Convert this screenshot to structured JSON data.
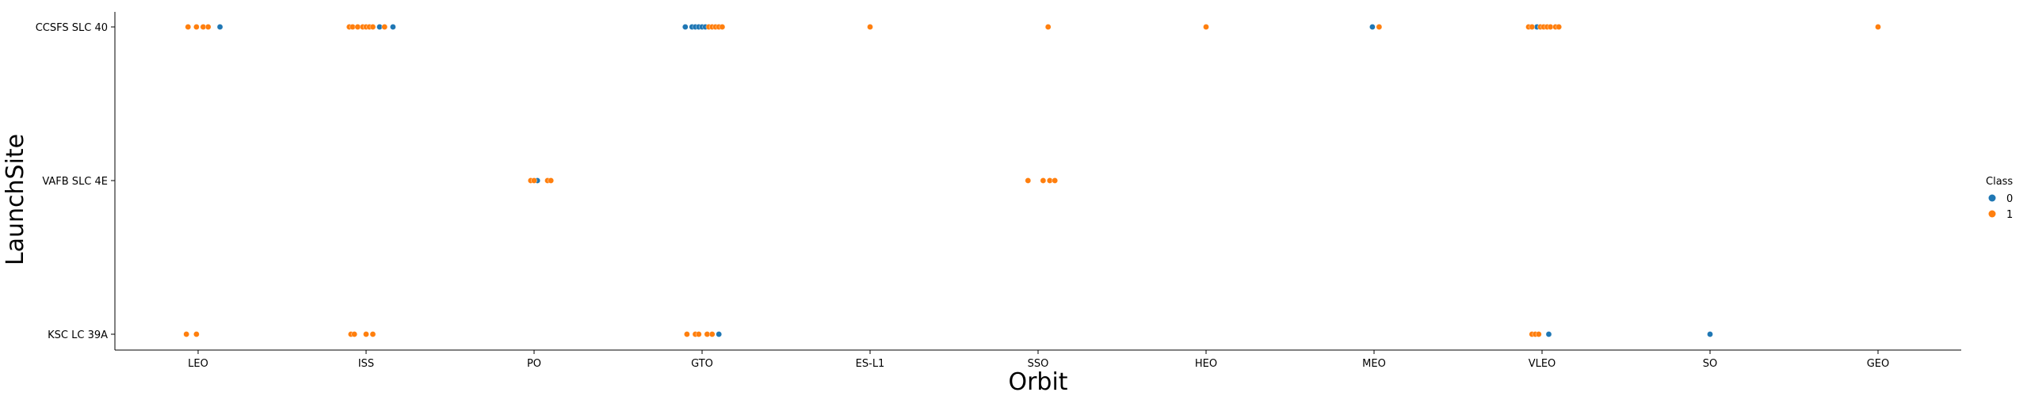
{
  "chart_data": {
    "type": "scatter",
    "title": "",
    "xlabel": "Orbit",
    "ylabel": "LaunchSite",
    "x_categories": [
      "LEO",
      "ISS",
      "PO",
      "GTO",
      "ES-L1",
      "SSO",
      "HEO",
      "MEO",
      "VLEO",
      "SO",
      "GEO"
    ],
    "y_categories": [
      "CCSFS SLC 40",
      "VAFB SLC 4E",
      "KSC LC 39A"
    ],
    "legend": {
      "title": "Class",
      "placement": "right",
      "entries": [
        {
          "label": "0",
          "color": "#1f77b4"
        },
        {
          "label": "1",
          "color": "#ff7f0e"
        }
      ]
    },
    "series": [
      {
        "name": "0",
        "color": "#1f77b4",
        "points": [
          {
            "orbit": "LEO",
            "site": "CCSFS SLC 40",
            "jitter": 0.13
          },
          {
            "orbit": "ISS",
            "site": "CCSFS SLC 40",
            "jitter": 0.08
          },
          {
            "orbit": "ISS",
            "site": "CCSFS SLC 40",
            "jitter": 0.16
          },
          {
            "orbit": "PO",
            "site": "VAFB SLC 4E",
            "jitter": 0.02
          },
          {
            "orbit": "GTO",
            "site": "CCSFS SLC 40",
            "jitter": -0.1
          },
          {
            "orbit": "GTO",
            "site": "CCSFS SLC 40",
            "jitter": -0.06
          },
          {
            "orbit": "GTO",
            "site": "CCSFS SLC 40",
            "jitter": -0.04
          },
          {
            "orbit": "GTO",
            "site": "CCSFS SLC 40",
            "jitter": -0.02
          },
          {
            "orbit": "GTO",
            "site": "CCSFS SLC 40",
            "jitter": 0.0
          },
          {
            "orbit": "GTO",
            "site": "CCSFS SLC 40",
            "jitter": 0.02
          },
          {
            "orbit": "GTO",
            "site": "KSC LC 39A",
            "jitter": 0.1
          },
          {
            "orbit": "MEO",
            "site": "CCSFS SLC 40",
            "jitter": -0.01
          },
          {
            "orbit": "VLEO",
            "site": "CCSFS SLC 40",
            "jitter": -0.03
          },
          {
            "orbit": "VLEO",
            "site": "KSC LC 39A",
            "jitter": 0.04
          },
          {
            "orbit": "SO",
            "site": "KSC LC 39A",
            "jitter": 0.0
          }
        ]
      },
      {
        "name": "1",
        "color": "#ff7f0e",
        "points": [
          {
            "orbit": "LEO",
            "site": "CCSFS SLC 40",
            "jitter": -0.06
          },
          {
            "orbit": "LEO",
            "site": "CCSFS SLC 40",
            "jitter": -0.01
          },
          {
            "orbit": "LEO",
            "site": "CCSFS SLC 40",
            "jitter": 0.03
          },
          {
            "orbit": "LEO",
            "site": "CCSFS SLC 40",
            "jitter": 0.06
          },
          {
            "orbit": "LEO",
            "site": "KSC LC 39A",
            "jitter": -0.07
          },
          {
            "orbit": "LEO",
            "site": "KSC LC 39A",
            "jitter": -0.01
          },
          {
            "orbit": "ISS",
            "site": "CCSFS SLC 40",
            "jitter": -0.1
          },
          {
            "orbit": "ISS",
            "site": "CCSFS SLC 40",
            "jitter": -0.08
          },
          {
            "orbit": "ISS",
            "site": "CCSFS SLC 40",
            "jitter": -0.05
          },
          {
            "orbit": "ISS",
            "site": "CCSFS SLC 40",
            "jitter": -0.02
          },
          {
            "orbit": "ISS",
            "site": "CCSFS SLC 40",
            "jitter": 0.0
          },
          {
            "orbit": "ISS",
            "site": "CCSFS SLC 40",
            "jitter": 0.02
          },
          {
            "orbit": "ISS",
            "site": "CCSFS SLC 40",
            "jitter": 0.04
          },
          {
            "orbit": "ISS",
            "site": "CCSFS SLC 40",
            "jitter": 0.11
          },
          {
            "orbit": "ISS",
            "site": "KSC LC 39A",
            "jitter": -0.09
          },
          {
            "orbit": "ISS",
            "site": "KSC LC 39A",
            "jitter": -0.07
          },
          {
            "orbit": "ISS",
            "site": "KSC LC 39A",
            "jitter": 0.0
          },
          {
            "orbit": "ISS",
            "site": "KSC LC 39A",
            "jitter": 0.04
          },
          {
            "orbit": "PO",
            "site": "VAFB SLC 4E",
            "jitter": -0.02
          },
          {
            "orbit": "PO",
            "site": "VAFB SLC 4E",
            "jitter": 0.0
          },
          {
            "orbit": "PO",
            "site": "VAFB SLC 4E",
            "jitter": 0.08
          },
          {
            "orbit": "PO",
            "site": "VAFB SLC 4E",
            "jitter": 0.1
          },
          {
            "orbit": "GTO",
            "site": "CCSFS SLC 40",
            "jitter": 0.04
          },
          {
            "orbit": "GTO",
            "site": "CCSFS SLC 40",
            "jitter": 0.06
          },
          {
            "orbit": "GTO",
            "site": "CCSFS SLC 40",
            "jitter": 0.08
          },
          {
            "orbit": "GTO",
            "site": "CCSFS SLC 40",
            "jitter": 0.1
          },
          {
            "orbit": "GTO",
            "site": "CCSFS SLC 40",
            "jitter": 0.12
          },
          {
            "orbit": "GTO",
            "site": "KSC LC 39A",
            "jitter": -0.09
          },
          {
            "orbit": "GTO",
            "site": "KSC LC 39A",
            "jitter": -0.04
          },
          {
            "orbit": "GTO",
            "site": "KSC LC 39A",
            "jitter": -0.02
          },
          {
            "orbit": "GTO",
            "site": "KSC LC 39A",
            "jitter": 0.03
          },
          {
            "orbit": "GTO",
            "site": "KSC LC 39A",
            "jitter": 0.06
          },
          {
            "orbit": "ES-L1",
            "site": "CCSFS SLC 40",
            "jitter": 0.0
          },
          {
            "orbit": "SSO",
            "site": "CCSFS SLC 40",
            "jitter": 0.06
          },
          {
            "orbit": "SSO",
            "site": "VAFB SLC 4E",
            "jitter": -0.06
          },
          {
            "orbit": "SSO",
            "site": "VAFB SLC 4E",
            "jitter": 0.03
          },
          {
            "orbit": "SSO",
            "site": "VAFB SLC 4E",
            "jitter": 0.07
          },
          {
            "orbit": "SSO",
            "site": "VAFB SLC 4E",
            "jitter": 0.1
          },
          {
            "orbit": "HEO",
            "site": "CCSFS SLC 40",
            "jitter": 0.0
          },
          {
            "orbit": "MEO",
            "site": "CCSFS SLC 40",
            "jitter": 0.03
          },
          {
            "orbit": "VLEO",
            "site": "CCSFS SLC 40",
            "jitter": -0.08
          },
          {
            "orbit": "VLEO",
            "site": "CCSFS SLC 40",
            "jitter": -0.06
          },
          {
            "orbit": "VLEO",
            "site": "CCSFS SLC 40",
            "jitter": -0.01
          },
          {
            "orbit": "VLEO",
            "site": "CCSFS SLC 40",
            "jitter": 0.01
          },
          {
            "orbit": "VLEO",
            "site": "CCSFS SLC 40",
            "jitter": 0.03
          },
          {
            "orbit": "VLEO",
            "site": "CCSFS SLC 40",
            "jitter": 0.05
          },
          {
            "orbit": "VLEO",
            "site": "CCSFS SLC 40",
            "jitter": 0.08
          },
          {
            "orbit": "VLEO",
            "site": "CCSFS SLC 40",
            "jitter": 0.1
          },
          {
            "orbit": "VLEO",
            "site": "KSC LC 39A",
            "jitter": -0.06
          },
          {
            "orbit": "VLEO",
            "site": "KSC LC 39A",
            "jitter": -0.04
          },
          {
            "orbit": "VLEO",
            "site": "KSC LC 39A",
            "jitter": -0.02
          },
          {
            "orbit": "GEO",
            "site": "CCSFS SLC 40",
            "jitter": 0.0
          }
        ]
      }
    ]
  }
}
